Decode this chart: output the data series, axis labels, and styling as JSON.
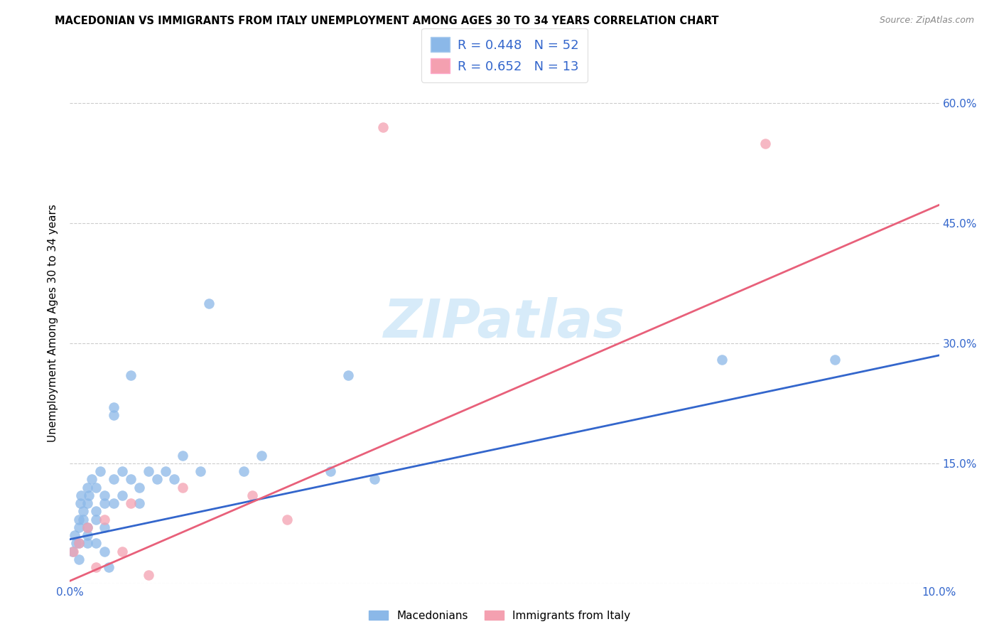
{
  "title": "MACEDONIAN VS IMMIGRANTS FROM ITALY UNEMPLOYMENT AMONG AGES 30 TO 34 YEARS CORRELATION CHART",
  "source": "Source: ZipAtlas.com",
  "ylabel": "Unemployment Among Ages 30 to 34 years",
  "xlim": [
    0.0,
    0.1
  ],
  "ylim": [
    0.0,
    0.65
  ],
  "watermark_text": "ZIPatlas",
  "macedonians_color": "#8BB8E8",
  "italians_color": "#F4A0B0",
  "macedonians_line_color": "#3366CC",
  "italians_line_color": "#E8607A",
  "legend_line1": "R = 0.448   N = 52",
  "legend_line2": "R = 0.652   N = 13",
  "legend_label_macedonians": "Macedonians",
  "legend_label_italians": "Immigrants from Italy",
  "mac_regline": [
    0.0,
    0.1,
    0.055,
    0.285
  ],
  "ita_regline": [
    0.0,
    0.1,
    0.003,
    0.473
  ],
  "macedonians_x": [
    0.0003,
    0.0005,
    0.0007,
    0.001,
    0.001,
    0.001,
    0.001,
    0.0012,
    0.0013,
    0.0015,
    0.0015,
    0.002,
    0.002,
    0.002,
    0.002,
    0.002,
    0.0022,
    0.0025,
    0.003,
    0.003,
    0.003,
    0.003,
    0.0035,
    0.004,
    0.004,
    0.004,
    0.004,
    0.0045,
    0.005,
    0.005,
    0.005,
    0.005,
    0.006,
    0.006,
    0.007,
    0.007,
    0.008,
    0.008,
    0.009,
    0.01,
    0.011,
    0.012,
    0.013,
    0.015,
    0.016,
    0.02,
    0.022,
    0.03,
    0.032,
    0.035,
    0.075,
    0.088
  ],
  "macedonians_y": [
    0.04,
    0.06,
    0.05,
    0.07,
    0.08,
    0.03,
    0.05,
    0.1,
    0.11,
    0.09,
    0.08,
    0.12,
    0.1,
    0.06,
    0.05,
    0.07,
    0.11,
    0.13,
    0.09,
    0.12,
    0.05,
    0.08,
    0.14,
    0.11,
    0.07,
    0.04,
    0.1,
    0.02,
    0.21,
    0.22,
    0.13,
    0.1,
    0.14,
    0.11,
    0.26,
    0.13,
    0.12,
    0.1,
    0.14,
    0.13,
    0.14,
    0.13,
    0.16,
    0.14,
    0.35,
    0.14,
    0.16,
    0.14,
    0.26,
    0.13,
    0.28,
    0.28
  ],
  "italians_x": [
    0.0004,
    0.001,
    0.002,
    0.003,
    0.004,
    0.006,
    0.007,
    0.009,
    0.013,
    0.021,
    0.025,
    0.036,
    0.08
  ],
  "italians_y": [
    0.04,
    0.05,
    0.07,
    0.02,
    0.08,
    0.04,
    0.1,
    0.01,
    0.12,
    0.11,
    0.08,
    0.57,
    0.55
  ]
}
